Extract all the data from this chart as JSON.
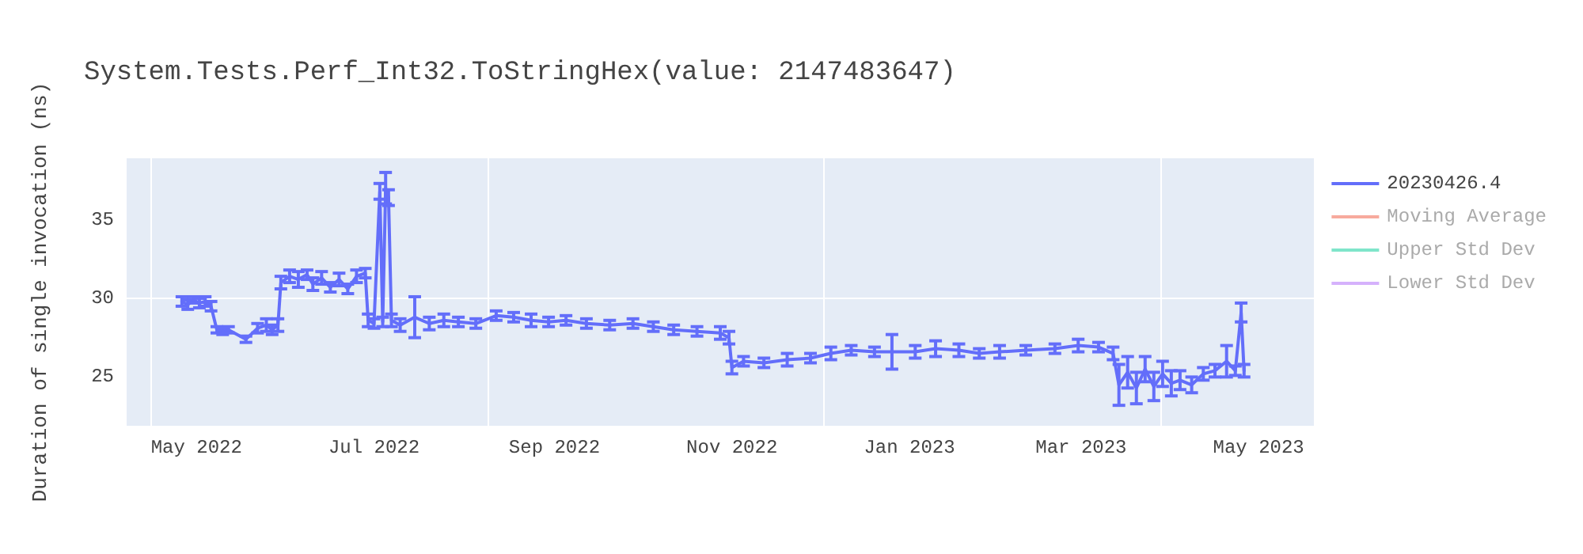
{
  "chart_data": {
    "type": "line",
    "title": "System.Tests.Perf_Int32.ToStringHex(value: 2147483647)",
    "ylabel": "Duration of single invocation (ns)",
    "x": [
      "2022-04-26",
      "2022-04-28",
      "2022-04-30",
      "2022-05-02",
      "2022-05-04",
      "2022-05-06",
      "2022-05-08",
      "2022-05-10",
      "2022-05-12",
      "2022-05-18",
      "2022-05-22",
      "2022-05-25",
      "2022-05-27",
      "2022-05-29",
      "2022-05-30",
      "2022-06-02",
      "2022-06-05",
      "2022-06-08",
      "2022-06-10",
      "2022-06-13",
      "2022-06-16",
      "2022-06-19",
      "2022-06-22",
      "2022-06-25",
      "2022-06-28",
      "2022-06-29",
      "2022-07-01",
      "2022-07-03",
      "2022-07-04",
      "2022-07-05",
      "2022-07-06",
      "2022-07-07",
      "2022-07-10",
      "2022-07-15",
      "2022-07-20",
      "2022-07-25",
      "2022-07-30",
      "2022-08-05",
      "2022-08-12",
      "2022-08-18",
      "2022-08-24",
      "2022-08-30",
      "2022-09-05",
      "2022-09-12",
      "2022-09-20",
      "2022-09-28",
      "2022-10-05",
      "2022-10-12",
      "2022-10-20",
      "2022-10-28",
      "2022-10-31",
      "2022-11-01",
      "2022-11-05",
      "2022-11-12",
      "2022-11-20",
      "2022-11-28",
      "2022-12-05",
      "2022-12-12",
      "2022-12-20",
      "2022-12-26",
      "2023-01-03",
      "2023-01-10",
      "2023-01-18",
      "2023-01-25",
      "2023-02-01",
      "2023-02-10",
      "2023-02-20",
      "2023-02-28",
      "2023-03-07",
      "2023-03-12",
      "2023-03-14",
      "2023-03-17",
      "2023-03-20",
      "2023-03-23",
      "2023-03-26",
      "2023-03-29",
      "2023-04-01",
      "2023-04-04",
      "2023-04-08",
      "2023-04-12",
      "2023-04-16",
      "2023-04-20",
      "2023-04-23",
      "2023-04-25",
      "2023-04-26"
    ],
    "series": [
      {
        "name": "20230426.4",
        "color": "#636efa",
        "values": [
          29.8,
          29.6,
          29.9,
          29.7,
          29.8,
          29.5,
          28.0,
          27.9,
          28.0,
          27.4,
          28.1,
          28.3,
          28.0,
          28.3,
          31.0,
          31.4,
          31.2,
          31.5,
          30.9,
          31.3,
          30.7,
          31.2,
          30.6,
          31.4,
          31.6,
          28.6,
          28.4,
          36.8,
          28.5,
          37.0,
          36.4,
          28.6,
          28.3,
          28.8,
          28.4,
          28.6,
          28.5,
          28.4,
          28.9,
          28.8,
          28.6,
          28.5,
          28.6,
          28.4,
          28.3,
          28.4,
          28.2,
          28.0,
          27.9,
          27.8,
          27.5,
          25.6,
          26.0,
          25.9,
          26.1,
          26.2,
          26.5,
          26.7,
          26.6,
          26.6,
          26.6,
          26.8,
          26.7,
          26.5,
          26.6,
          26.7,
          26.8,
          27.0,
          26.9,
          26.5,
          24.5,
          25.3,
          24.3,
          25.5,
          24.4,
          25.2,
          24.6,
          24.8,
          24.5,
          25.2,
          25.4,
          26.0,
          25.4,
          29.1,
          25.4
        ],
        "errors": [
          0.3,
          0.3,
          0.2,
          0.3,
          0.3,
          0.3,
          0.2,
          0.2,
          0.2,
          0.2,
          0.3,
          0.4,
          0.3,
          0.4,
          0.4,
          0.4,
          0.5,
          0.3,
          0.4,
          0.4,
          0.3,
          0.4,
          0.3,
          0.4,
          0.3,
          0.4,
          0.3,
          0.5,
          0.3,
          1.0,
          0.5,
          0.4,
          0.4,
          1.3,
          0.4,
          0.4,
          0.3,
          0.3,
          0.3,
          0.3,
          0.4,
          0.3,
          0.3,
          0.3,
          0.3,
          0.3,
          0.3,
          0.3,
          0.3,
          0.4,
          0.4,
          0.4,
          0.3,
          0.3,
          0.4,
          0.3,
          0.4,
          0.3,
          0.3,
          1.1,
          0.4,
          0.5,
          0.4,
          0.3,
          0.4,
          0.3,
          0.3,
          0.4,
          0.3,
          0.4,
          1.3,
          1.0,
          1.0,
          0.8,
          0.9,
          0.8,
          0.8,
          0.6,
          0.5,
          0.4,
          0.4,
          1.0,
          0.3,
          0.6,
          0.4
        ]
      },
      {
        "name": "Moving Average",
        "color": "#ef553b",
        "values": [
          null,
          null,
          null,
          null,
          null,
          null,
          null,
          null,
          null,
          null,
          null,
          null,
          null,
          null,
          null,
          null,
          null,
          null,
          null,
          null,
          null,
          null,
          null,
          null,
          null,
          null,
          null,
          null,
          null,
          null,
          null,
          null,
          null,
          null,
          null,
          null,
          null,
          null,
          null,
          null,
          null,
          null,
          null,
          null,
          null,
          null,
          null,
          null,
          null,
          null,
          null,
          null,
          null,
          null,
          null,
          null,
          null,
          null,
          null,
          null,
          null,
          null,
          null,
          null,
          null,
          null,
          null,
          null,
          null,
          null,
          null,
          null,
          null,
          null,
          null,
          null,
          null,
          null,
          null,
          null,
          null,
          null,
          null,
          null,
          null
        ]
      },
      {
        "name": "Upper Std Dev",
        "color": "#00cc96",
        "values": [
          null,
          null,
          null,
          null,
          null,
          null,
          null,
          null,
          null,
          null,
          null,
          null,
          null,
          null,
          null,
          null,
          null,
          null,
          null,
          null,
          null,
          null,
          null,
          null,
          null,
          null,
          null,
          null,
          null,
          null,
          null,
          null,
          null,
          null,
          null,
          null,
          null,
          null,
          null,
          null,
          null,
          null,
          null,
          null,
          null,
          null,
          null,
          null,
          null,
          null,
          null,
          null,
          null,
          null,
          null,
          null,
          null,
          null,
          null,
          null,
          null,
          null,
          null,
          null,
          null,
          null,
          null,
          null,
          null,
          null,
          null,
          null,
          null,
          null,
          null,
          null,
          null,
          null,
          null,
          null,
          null,
          null,
          null,
          null,
          null
        ]
      },
      {
        "name": "Lower Std Dev",
        "color": "#ab63fa",
        "values": [
          null,
          null,
          null,
          null,
          null,
          null,
          null,
          null,
          null,
          null,
          null,
          null,
          null,
          null,
          null,
          null,
          null,
          null,
          null,
          null,
          null,
          null,
          null,
          null,
          null,
          null,
          null,
          null,
          null,
          null,
          null,
          null,
          null,
          null,
          null,
          null,
          null,
          null,
          null,
          null,
          null,
          null,
          null,
          null,
          null,
          null,
          null,
          null,
          null,
          null,
          null,
          null,
          null,
          null,
          null,
          null,
          null,
          null,
          null,
          null,
          null,
          null,
          null,
          null,
          null,
          null,
          null,
          null,
          null,
          null,
          null,
          null,
          null,
          null,
          null,
          null,
          null,
          null,
          null,
          null,
          null,
          null,
          null,
          null,
          null
        ]
      }
    ],
    "xlim": [
      "2022-04-07",
      "2023-05-20"
    ],
    "xticks": [
      {
        "value": "2022-05-01",
        "label": "May 2022"
      },
      {
        "value": "2022-07-01",
        "label": "Jul 2022"
      },
      {
        "value": "2022-09-01",
        "label": "Sep 2022"
      },
      {
        "value": "2022-11-01",
        "label": "Nov 2022"
      },
      {
        "value": "2023-01-01",
        "label": "Jan 2023"
      },
      {
        "value": "2023-03-01",
        "label": "Mar 2023"
      },
      {
        "value": "2023-05-01",
        "label": "May 2023"
      }
    ],
    "ylim": [
      21.9,
      38.9
    ],
    "yticks": [
      25,
      30,
      35
    ],
    "grid": true,
    "legend": "top right",
    "marker": "none",
    "line_style": "solid"
  }
}
